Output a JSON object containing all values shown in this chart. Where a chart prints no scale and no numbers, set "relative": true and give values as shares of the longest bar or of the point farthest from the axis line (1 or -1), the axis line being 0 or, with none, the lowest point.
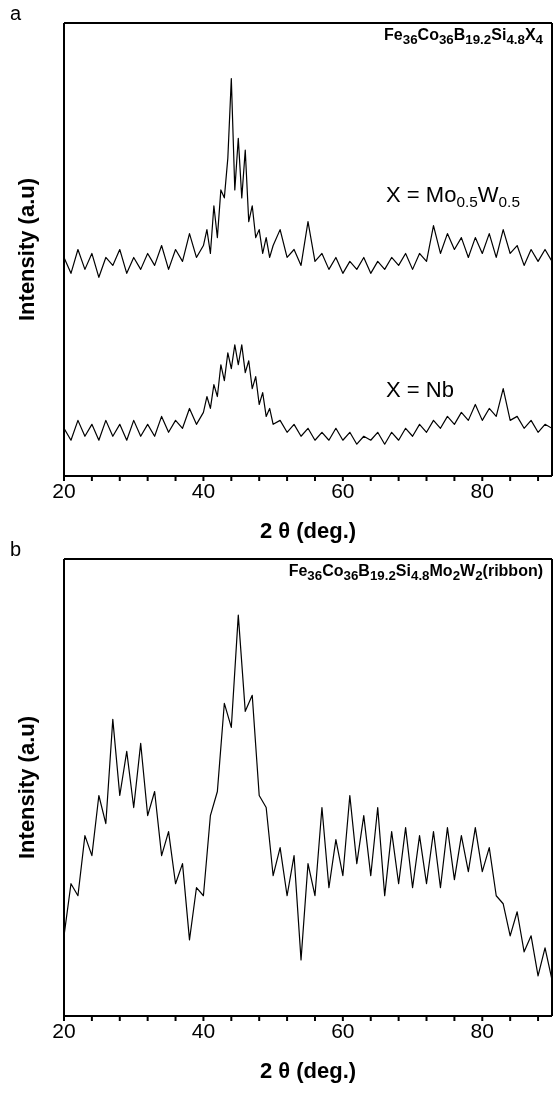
{
  "chart_data": [
    {
      "type": "line",
      "title": "a",
      "xlabel": "2 θ (deg.)",
      "ylabel": "Intensity (a.u)",
      "relative": true,
      "annotations": [
        "Fe$_{36}$Co$_{36}$B$_{19.2}$Si$_{4.8}$X$_{4}$"
      ],
      "x": [
        20,
        21,
        22,
        23,
        24,
        25,
        26,
        27,
        28,
        29,
        30,
        31,
        32,
        33,
        34,
        35,
        36,
        37,
        38,
        39,
        40,
        40.5,
        41,
        41.5,
        42,
        42.5,
        43,
        43.5,
        44,
        44.5,
        45,
        45.5,
        46,
        46.5,
        47,
        47.5,
        48,
        48.5,
        49,
        49.5,
        50,
        51,
        52,
        53,
        54,
        55,
        56,
        57,
        58,
        59,
        60,
        61,
        62,
        63,
        64,
        65,
        66,
        67,
        68,
        69,
        70,
        71,
        72,
        73,
        74,
        75,
        76,
        77,
        78,
        79,
        80,
        81,
        82,
        83,
        84,
        85,
        86,
        87,
        88,
        89,
        90
      ],
      "xlim": [
        20,
        90
      ],
      "xticks": [
        20,
        {
          "value": 24,
          "label": null
        },
        {
          "value": 28,
          "label": null
        },
        {
          "value": 32,
          "label": null
        },
        {
          "value": 36,
          "label": null
        },
        40,
        {
          "value": 44,
          "label": null
        },
        {
          "value": 48,
          "label": null
        },
        {
          "value": 52,
          "label": null
        },
        {
          "value": 56,
          "label": null
        },
        60,
        {
          "value": 64,
          "label": null
        },
        {
          "value": 68,
          "label": null
        },
        {
          "value": 72,
          "label": null
        },
        {
          "value": 76,
          "label": null
        },
        80,
        {
          "value": 84,
          "label": null
        },
        {
          "value": 88,
          "label": null
        }
      ],
      "series": [
        {
          "name": "X = Mo$_{0.5}$W$_{0.5}$",
          "color": "#000000",
          "values": [
            0.55,
            0.51,
            0.57,
            0.52,
            0.56,
            0.5,
            0.55,
            0.53,
            0.57,
            0.51,
            0.55,
            0.52,
            0.56,
            0.53,
            0.58,
            0.52,
            0.57,
            0.54,
            0.61,
            0.55,
            0.58,
            0.62,
            0.56,
            0.68,
            0.6,
            0.72,
            0.7,
            0.8,
            1.0,
            0.72,
            0.85,
            0.7,
            0.82,
            0.64,
            0.68,
            0.6,
            0.62,
            0.56,
            0.6,
            0.55,
            0.58,
            0.62,
            0.55,
            0.57,
            0.53,
            0.64,
            0.54,
            0.56,
            0.52,
            0.55,
            0.51,
            0.54,
            0.52,
            0.55,
            0.51,
            0.54,
            0.52,
            0.55,
            0.53,
            0.56,
            0.52,
            0.56,
            0.54,
            0.63,
            0.56,
            0.61,
            0.57,
            0.6,
            0.55,
            0.6,
            0.56,
            0.61,
            0.55,
            0.62,
            0.56,
            0.58,
            0.53,
            0.57,
            0.54,
            0.57,
            0.54
          ]
        },
        {
          "name": "X = Nb",
          "color": "#000000",
          "values": [
            0.12,
            0.09,
            0.14,
            0.1,
            0.13,
            0.09,
            0.14,
            0.1,
            0.13,
            0.09,
            0.14,
            0.1,
            0.13,
            0.1,
            0.15,
            0.11,
            0.14,
            0.12,
            0.17,
            0.13,
            0.16,
            0.2,
            0.17,
            0.23,
            0.2,
            0.28,
            0.24,
            0.31,
            0.27,
            0.33,
            0.28,
            0.33,
            0.26,
            0.29,
            0.22,
            0.25,
            0.18,
            0.21,
            0.15,
            0.17,
            0.13,
            0.14,
            0.11,
            0.13,
            0.1,
            0.12,
            0.09,
            0.11,
            0.09,
            0.12,
            0.09,
            0.11,
            0.08,
            0.1,
            0.09,
            0.11,
            0.08,
            0.11,
            0.09,
            0.12,
            0.1,
            0.13,
            0.11,
            0.14,
            0.12,
            0.15,
            0.13,
            0.16,
            0.14,
            0.18,
            0.14,
            0.17,
            0.15,
            0.22,
            0.14,
            0.15,
            0.12,
            0.14,
            0.11,
            0.13,
            0.12
          ]
        }
      ]
    },
    {
      "type": "line",
      "title": "b",
      "xlabel": "2 θ (deg.)",
      "ylabel": "Intensity (a.u)",
      "relative": true,
      "annotations": [
        "Fe$_{36}$Co$_{36}$B$_{19.2}$Si$_{4.8}$Mo$_{2}$W$_{2}$(ribbon)"
      ],
      "x": [
        20,
        21,
        22,
        23,
        24,
        25,
        26,
        27,
        28,
        29,
        30,
        31,
        32,
        33,
        34,
        35,
        36,
        37,
        38,
        39,
        40,
        41,
        42,
        43,
        44,
        45,
        46,
        47,
        48,
        49,
        50,
        51,
        52,
        53,
        54,
        55,
        56,
        57,
        58,
        59,
        60,
        61,
        62,
        63,
        64,
        65,
        66,
        67,
        68,
        69,
        70,
        71,
        72,
        73,
        74,
        75,
        76,
        77,
        78,
        79,
        80,
        81,
        82,
        83,
        84,
        85,
        86,
        87,
        88,
        89,
        90
      ],
      "xlim": [
        20,
        90
      ],
      "xticks": [
        20,
        {
          "value": 24,
          "label": null
        },
        {
          "value": 28,
          "label": null
        },
        {
          "value": 32,
          "label": null
        },
        {
          "value": 36,
          "label": null
        },
        40,
        {
          "value": 44,
          "label": null
        },
        {
          "value": 48,
          "label": null
        },
        {
          "value": 52,
          "label": null
        },
        {
          "value": 56,
          "label": null
        },
        60,
        {
          "value": 64,
          "label": null
        },
        {
          "value": 68,
          "label": null
        },
        {
          "value": 72,
          "label": null
        },
        {
          "value": 76,
          "label": null
        },
        80,
        {
          "value": 84,
          "label": null
        },
        {
          "value": 88,
          "label": null
        }
      ],
      "series": [
        {
          "color": "#000000",
          "values": [
            0.2,
            0.33,
            0.3,
            0.45,
            0.4,
            0.55,
            0.48,
            0.74,
            0.55,
            0.66,
            0.52,
            0.68,
            0.5,
            0.56,
            0.4,
            0.46,
            0.33,
            0.38,
            0.19,
            0.32,
            0.3,
            0.5,
            0.56,
            0.78,
            0.72,
            1.0,
            0.76,
            0.8,
            0.55,
            0.52,
            0.35,
            0.42,
            0.3,
            0.4,
            0.14,
            0.38,
            0.3,
            0.52,
            0.32,
            0.44,
            0.35,
            0.55,
            0.38,
            0.5,
            0.35,
            0.52,
            0.3,
            0.46,
            0.33,
            0.47,
            0.32,
            0.45,
            0.33,
            0.46,
            0.32,
            0.47,
            0.34,
            0.45,
            0.36,
            0.47,
            0.36,
            0.42,
            0.3,
            0.28,
            0.2,
            0.26,
            0.16,
            0.2,
            0.1,
            0.17,
            0.09
          ]
        }
      ]
    }
  ]
}
